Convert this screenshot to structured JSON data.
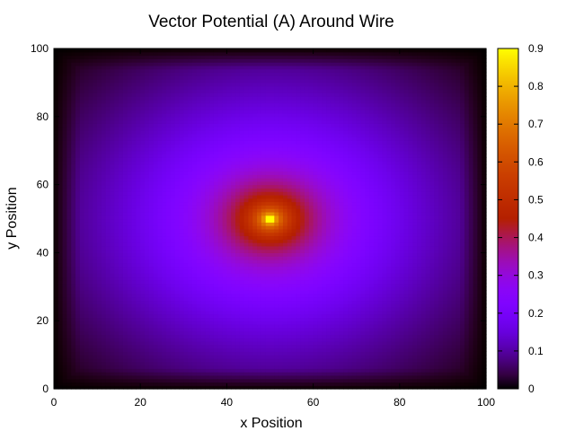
{
  "chart_data": {
    "type": "heatmap",
    "title": "Vector Potential (A) Around Wire",
    "xlabel": "x Position",
    "ylabel": "y Position",
    "xlim": [
      0,
      100
    ],
    "ylim": [
      0,
      100
    ],
    "x_ticks": [
      "0",
      "20",
      "40",
      "60",
      "80",
      "100"
    ],
    "y_ticks": [
      "0",
      "20",
      "40",
      "60",
      "80",
      "100"
    ],
    "colorbar": {
      "range": [
        0,
        0.9
      ],
      "ticks": [
        "0",
        "0.1",
        "0.2",
        "0.3",
        "0.4",
        "0.5",
        "0.6",
        "0.7",
        "0.8",
        "0.9"
      ],
      "palette": "black-purple-red-yellow"
    },
    "peak": {
      "x": 50,
      "y": 50,
      "value": 0.9
    },
    "boundary_value": 0,
    "grid": false,
    "legend": "colorbar-right"
  }
}
